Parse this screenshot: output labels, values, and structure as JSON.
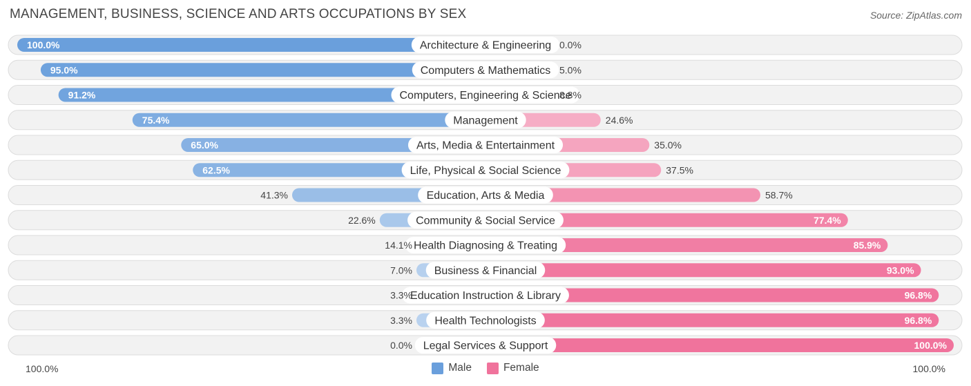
{
  "header": {
    "title": "MANAGEMENT, BUSINESS, SCIENCE AND ARTS OCCUPATIONS BY SEX",
    "source": "Source: ZipAtlas.com"
  },
  "axis": {
    "left_label": "100.0%",
    "right_label": "100.0%"
  },
  "legend": {
    "male_label": "Male",
    "female_label": "Female",
    "male_color": "#6a9fdc",
    "female_color": "#f0739c"
  },
  "chart_data": {
    "type": "bar",
    "orientation": "horizontal-diverging",
    "categories": [
      "Architecture & Engineering",
      "Computers & Mathematics",
      "Computers, Engineering & Science",
      "Management",
      "Arts, Media & Entertainment",
      "Life, Physical & Social Science",
      "Education, Arts & Media",
      "Community & Social Service",
      "Health Diagnosing & Treating",
      "Business & Financial",
      "Education Instruction & Library",
      "Health Technologists",
      "Legal Services & Support"
    ],
    "series": [
      {
        "name": "Male",
        "values": [
          100.0,
          95.0,
          91.2,
          75.4,
          65.0,
          62.5,
          41.3,
          22.6,
          14.1,
          7.0,
          3.3,
          3.3,
          0.0
        ],
        "labels": [
          "100.0%",
          "95.0%",
          "91.2%",
          "75.4%",
          "65.0%",
          "62.5%",
          "41.3%",
          "22.6%",
          "14.1%",
          "7.0%",
          "3.3%",
          "3.3%",
          "0.0%"
        ]
      },
      {
        "name": "Female",
        "values": [
          0.0,
          5.0,
          8.8,
          24.6,
          35.0,
          37.5,
          58.7,
          77.4,
          85.9,
          93.0,
          96.8,
          96.8,
          100.0
        ],
        "labels": [
          "0.0%",
          "5.0%",
          "8.8%",
          "24.6%",
          "35.0%",
          "37.5%",
          "58.7%",
          "77.4%",
          "85.9%",
          "93.0%",
          "96.8%",
          "96.8%",
          "100.0%"
        ]
      }
    ],
    "xlim": [
      0,
      100
    ],
    "grid": false,
    "legend_position": "bottom-center"
  }
}
